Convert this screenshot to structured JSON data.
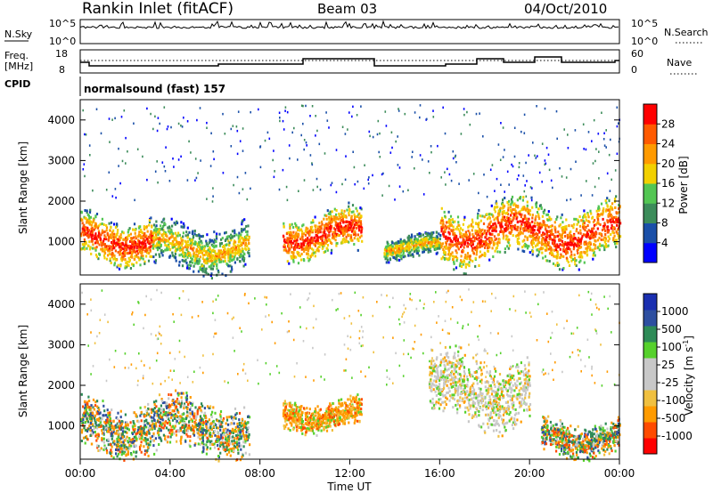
{
  "header": {
    "station": "Rankin Inlet (fitACF)",
    "beam": "Beam 03",
    "date": "04/Oct/2010"
  },
  "nsky_panel": {
    "left_label": "N.Sky",
    "left_ticks": [
      "10^5",
      "10^0"
    ],
    "right_label": "N.Search",
    "right_ticks": [
      "10^5",
      "10^0"
    ]
  },
  "freq_panel": {
    "left_label_line1": "Freq.",
    "left_label_line2": "[MHz]",
    "left_ticks": [
      "18",
      "8"
    ],
    "right_label": "Nave",
    "right_ticks": [
      "60",
      "0"
    ]
  },
  "cpid": {
    "label": "CPID",
    "value": "normalsound (fast) 157"
  },
  "time_axis": {
    "label": "Time UT",
    "ticks": [
      "00:00",
      "04:00",
      "08:00",
      "12:00",
      "16:00",
      "20:00",
      "00:00"
    ]
  },
  "colors": {
    "power_scale": [
      "#0000ff",
      "#1a4fa8",
      "#3c8c5a",
      "#53c653",
      "#f2d000",
      "#ff9a00",
      "#ff5a00",
      "#ff0000"
    ],
    "velocity_scale": [
      "#ff0000",
      "#ff4b00",
      "#ff9b00",
      "#f0c040",
      "#c8c8c8",
      "#c8c8c8",
      "#56d12c",
      "#2e8b57",
      "#2e4fa0",
      "#1a2fb0"
    ]
  },
  "chart_data": [
    {
      "type": "heatmap",
      "title": "",
      "xlabel": "Time UT",
      "ylabel": "Slant Range [km]",
      "xlim": [
        "00:00",
        "24:00"
      ],
      "ylim": [
        180,
        4500
      ],
      "y_ticks": [
        "1000",
        "2000",
        "3000",
        "4000"
      ],
      "colorbar": {
        "label": "Power [dB]",
        "ticks": [
          "4",
          "8",
          "12",
          "16",
          "20",
          "24",
          "28"
        ]
      },
      "scatter_regions": [
        {
          "start_hour": 0.0,
          "end_hour": 3.2,
          "range_km": [
            500,
            1700
          ],
          "level": "high"
        },
        {
          "start_hour": 3.2,
          "end_hour": 7.5,
          "range_km": [
            300,
            1500
          ],
          "level": "medium"
        },
        {
          "start_hour": 9.0,
          "end_hour": 12.5,
          "range_km": [
            600,
            1800
          ],
          "level": "high"
        },
        {
          "start_hour": 13.5,
          "end_hour": 16.0,
          "range_km": [
            600,
            1200
          ],
          "level": "medium"
        },
        {
          "start_hour": 16.0,
          "end_hour": 24.0,
          "range_km": [
            500,
            2000
          ],
          "level": "high"
        }
      ]
    },
    {
      "type": "heatmap",
      "title": "",
      "xlabel": "Time UT",
      "ylabel": "Slant Range [km]",
      "xlim": [
        "00:00",
        "24:00"
      ],
      "ylim": [
        180,
        4500
      ],
      "y_ticks": [
        "1000",
        "2000",
        "3000",
        "4000"
      ],
      "colorbar": {
        "label": "Velocity [m s^-1]",
        "ticks": [
          "1000",
          "500",
          "100",
          "25",
          "-25",
          "-100",
          "-500",
          "-1000"
        ]
      },
      "scatter_regions": [
        {
          "start_hour": 0.0,
          "end_hour": 7.5,
          "range_km": [
            300,
            1700
          ],
          "dominant_velocity": "mixed"
        },
        {
          "start_hour": 9.0,
          "end_hour": 12.5,
          "range_km": [
            900,
            1700
          ],
          "dominant_velocity": "-100"
        },
        {
          "start_hour": 15.5,
          "end_hour": 20.0,
          "range_km": [
            1000,
            2800
          ],
          "dominant_velocity": "-25 to 25"
        },
        {
          "start_hour": 20.5,
          "end_hour": 24.0,
          "range_km": [
            300,
            1200
          ],
          "dominant_velocity": "mixed"
        }
      ]
    }
  ]
}
